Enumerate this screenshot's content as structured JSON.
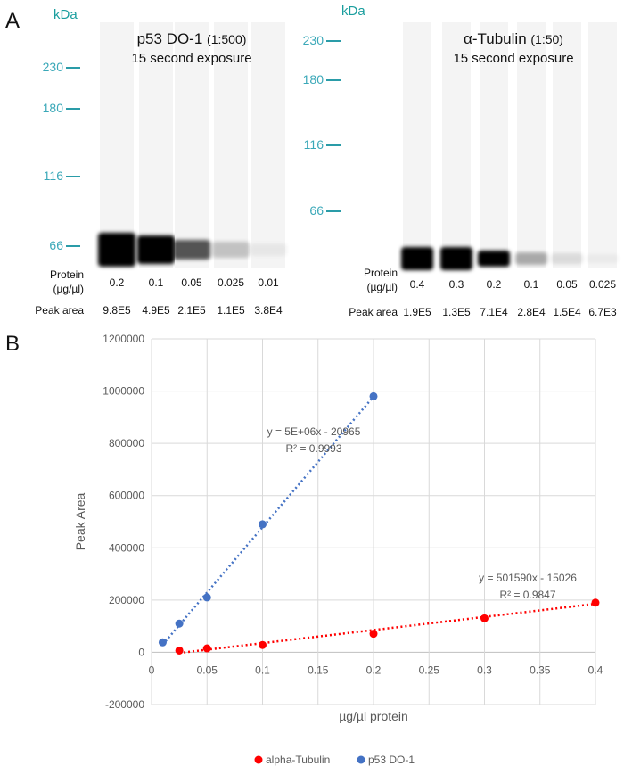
{
  "panel_a": {
    "label": "A",
    "blots": [
      {
        "kda_label": "kDa",
        "title": "p53 DO-1",
        "dilution": "(1:500)",
        "exposure": "15 second exposure",
        "markers": [
          "230",
          "180",
          "116",
          "66"
        ],
        "protein_label_1": "Protein",
        "protein_label_2": "(µg/µl)",
        "peak_label": "Peak area",
        "protein": [
          "0.2",
          "0.1",
          "0.05",
          "0.025",
          "0.01"
        ],
        "peak_area": [
          "9.8E5",
          "4.9E5",
          "2.1E5",
          "1.1E5",
          "3.8E4"
        ]
      },
      {
        "kda_label": "kDa",
        "title": "α-Tubulin",
        "dilution": "(1:50)",
        "exposure": "15 second exposure",
        "markers": [
          "230",
          "180",
          "116",
          "66"
        ],
        "protein_label_1": "Protein",
        "protein_label_2": "(µg/µl)",
        "peak_label": "Peak area",
        "protein": [
          "0.4",
          "0.3",
          "0.2",
          "0.1",
          "0.05",
          "0.025"
        ],
        "peak_area": [
          "1.9E5",
          "1.3E5",
          "7.1E4",
          "2.8E4",
          "1.5E4",
          "6.7E3"
        ]
      }
    ]
  },
  "panel_b": {
    "label": "B"
  },
  "chart_data": {
    "type": "scatter",
    "xlabel": "µg/µl protein",
    "ylabel": "Peak Area",
    "xlim": [
      0,
      0.4
    ],
    "ylim": [
      -200000,
      1200000
    ],
    "xticks": [
      "0",
      "0.05",
      "0.1",
      "0.15",
      "0.2",
      "0.25",
      "0.3",
      "0.35",
      "0.4"
    ],
    "yticks": [
      "-200000",
      "0",
      "200000",
      "400000",
      "600000",
      "800000",
      "1000000",
      "1200000"
    ],
    "grid": true,
    "legend_position": "bottom",
    "series": [
      {
        "name": "alpha-Tubulin",
        "color": "#ff0000",
        "x": [
          0.025,
          0.05,
          0.1,
          0.2,
          0.3,
          0.4
        ],
        "y": [
          6700,
          15000,
          28000,
          71000,
          130000,
          190000
        ],
        "trendline": {
          "slope": 501590,
          "intercept": -15026,
          "equation": "y = 501590x - 15026",
          "r2": "R² = 0.9847"
        }
      },
      {
        "name": "p53 DO-1",
        "color": "#4472c4",
        "x": [
          0.01,
          0.025,
          0.05,
          0.1,
          0.2
        ],
        "y": [
          38000,
          110000,
          210000,
          490000,
          980000
        ],
        "trendline": {
          "slope": 5000000,
          "intercept": -20965,
          "equation": "y = 5E+06x - 20965",
          "r2": "R² = 0.9993"
        }
      }
    ]
  }
}
